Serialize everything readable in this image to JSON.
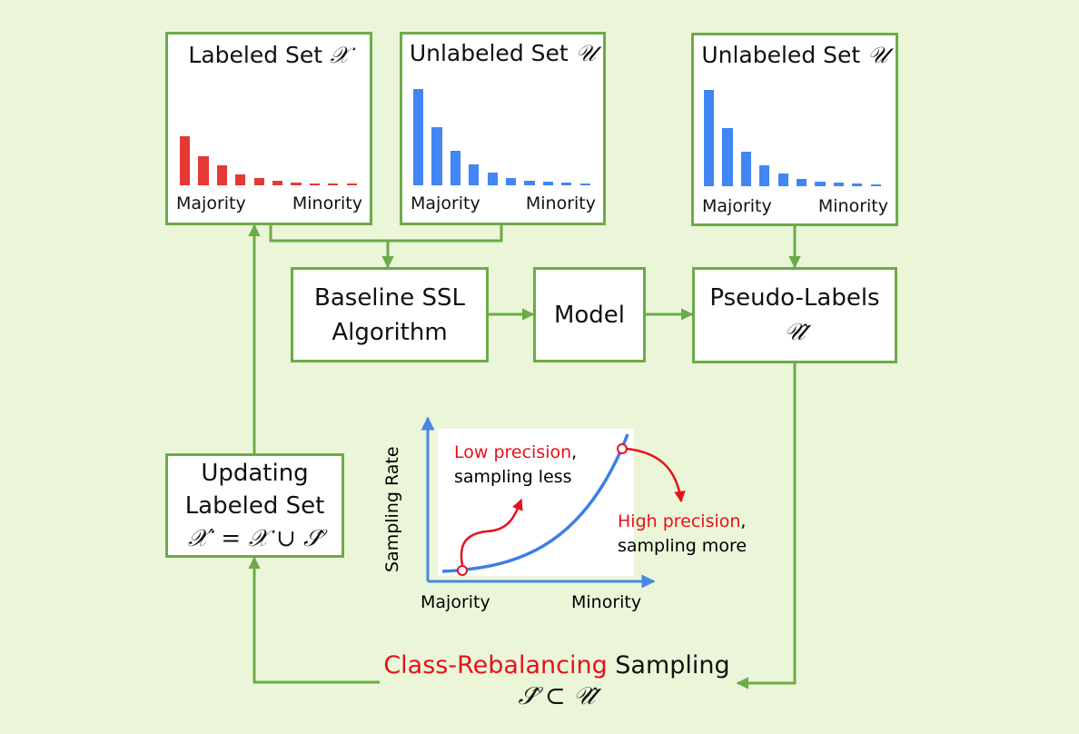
{
  "colors": {
    "background": "#ebf6d8",
    "border": "#6cab47",
    "labeled_bars": "#e53935",
    "unlabeled_bars": "#4285f4",
    "highlight_text": "#e8101a"
  },
  "labeled_set": {
    "title": "Labeled Set",
    "symbol": "𝒳",
    "axis_left": "Majority",
    "axis_right": "Minority",
    "bar_values": [
      1.0,
      0.6,
      0.4,
      0.22,
      0.14,
      0.09,
      0.06,
      0.04,
      0.03,
      0.02
    ]
  },
  "unlabeled_set": {
    "title": "Unlabeled Set",
    "symbol": "𝒰",
    "axis_left": "Majority",
    "axis_right": "Minority",
    "bar_values": [
      1.0,
      0.6,
      0.36,
      0.22,
      0.13,
      0.08,
      0.05,
      0.035,
      0.025,
      0.015
    ]
  },
  "unlabeled_set_right": {
    "title": "Unlabeled Set",
    "symbol": "𝒰",
    "axis_left": "Majority",
    "axis_right": "Minority",
    "bar_values": [
      1.0,
      0.6,
      0.36,
      0.22,
      0.13,
      0.08,
      0.05,
      0.035,
      0.025,
      0.015
    ]
  },
  "baseline": {
    "line1": "Baseline SSL",
    "line2": "Algorithm"
  },
  "model": {
    "label": "Model"
  },
  "pseudo_labels": {
    "line1": "Pseudo-Labels",
    "symbol": "𝒰̂"
  },
  "updating": {
    "line1": "Updating",
    "line2": "Labeled Set",
    "formula": "𝒳′ = 𝒳 ∪ 𝒮̂"
  },
  "sampling_inset": {
    "y_label": "Sampling Rate",
    "x_left": "Majority",
    "x_right": "Minority",
    "low_precision": "Low precision",
    "low_sampling": "sampling less",
    "high_precision": "High precision",
    "high_sampling": "sampling more",
    "comma": ","
  },
  "bottom": {
    "highlight": "Class-Rebalancing",
    "rest": " Sampling",
    "formula": "𝒮̂ ⊂ 𝒰̂"
  }
}
